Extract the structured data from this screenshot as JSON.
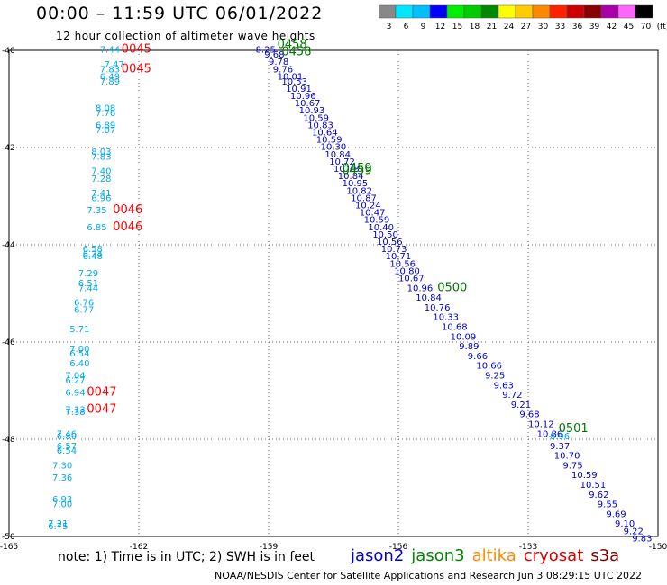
{
  "header": {
    "title": "00:00 – 11:59 UTC 06/01/2022",
    "subtitle": "12 hour collection of altimeter wave heights"
  },
  "footer": {
    "note": "note: 1) Time is in UTC; 2) SWH is in feet",
    "credit": "NOAA/NESDIS Center for Satellite Applications and Research   Jun  3 08:29:15 UTC 2022"
  },
  "satellites": [
    {
      "name": "jason2",
      "color": "#0000cc"
    },
    {
      "name": "jason3",
      "color": "#008800"
    },
    {
      "name": "altika",
      "color": "#ff8c00"
    },
    {
      "name": "cryosat",
      "color": "#dd0000"
    },
    {
      "name": "s3a",
      "color": "#880000"
    }
  ],
  "colorbar": {
    "labels": [
      "3",
      "6",
      "9",
      "12",
      "15",
      "18",
      "21",
      "24",
      "27",
      "30",
      "33",
      "36",
      "39",
      "42",
      "45",
      "70",
      "(ft)"
    ],
    "colors": [
      "#888888",
      "#00e6ff",
      "#00bfff",
      "#0000ff",
      "#00ee00",
      "#00cc00",
      "#008800",
      "#ffff00",
      "#ffcc00",
      "#ff8800",
      "#ff2200",
      "#cc0000",
      "#880000",
      "#aa00aa",
      "#ff66ff",
      "#000000"
    ]
  },
  "chart_data": {
    "type": "scatter",
    "title": "00:00 – 11:59 UTC 06/01/2022",
    "xlim": [
      -165,
      -150
    ],
    "ylim": [
      -50,
      -40
    ],
    "xticks": [
      "-165",
      "-162",
      "-159",
      "-156",
      "-153",
      "-150"
    ],
    "yticks": [
      "-40",
      "-42",
      "-44",
      "-46",
      "-48",
      "-50"
    ],
    "tracks": [
      {
        "satellite": "jason2",
        "color": "#0000cc",
        "points": [
          [
            -159.3,
            -40.05,
            "8.25"
          ],
          [
            -159.1,
            -40.15,
            "9.68"
          ],
          [
            -159.0,
            -40.3,
            "9.78"
          ],
          [
            -158.9,
            -40.45,
            "9.76"
          ],
          [
            -158.8,
            -40.6,
            "10.01"
          ],
          [
            -158.7,
            -40.7,
            "10.53"
          ],
          [
            -158.6,
            -40.85,
            "10.91"
          ],
          [
            -158.5,
            -41.0,
            "10.96"
          ],
          [
            -158.4,
            -41.15,
            "10.67"
          ],
          [
            -158.3,
            -41.3,
            "10.93"
          ],
          [
            -158.2,
            -41.45,
            "10.59"
          ],
          [
            -158.1,
            -41.6,
            "10.83"
          ],
          [
            -158.0,
            -41.75,
            "10.64"
          ],
          [
            -157.9,
            -41.9,
            "10.59"
          ],
          [
            -157.8,
            -42.05,
            "10.30"
          ],
          [
            -157.7,
            -42.2,
            "10.84"
          ],
          [
            -157.6,
            -42.35,
            "10.72"
          ],
          [
            -157.5,
            -42.5,
            "10.78"
          ],
          [
            -157.4,
            -42.65,
            "10.84"
          ],
          [
            -157.3,
            -42.8,
            "10.95"
          ],
          [
            -157.2,
            -42.95,
            "10.82"
          ],
          [
            -157.1,
            -43.1,
            "10.87"
          ],
          [
            -157.0,
            -43.25,
            "10.24"
          ],
          [
            -156.9,
            -43.4,
            "10.47"
          ],
          [
            -156.8,
            -43.55,
            "10.59"
          ],
          [
            -156.7,
            -43.7,
            "10.40"
          ],
          [
            -156.6,
            -43.85,
            "10.50"
          ],
          [
            -156.5,
            -44.0,
            "10.56"
          ],
          [
            -156.4,
            -44.15,
            "10.73"
          ],
          [
            -156.3,
            -44.3,
            "10.71"
          ],
          [
            -156.2,
            -44.45,
            "10.56"
          ],
          [
            -156.1,
            -44.6,
            "10.80"
          ],
          [
            -156.0,
            -44.75,
            "10.67"
          ],
          [
            -155.8,
            -44.95,
            "10.96"
          ],
          [
            -155.6,
            -45.15,
            "10.84"
          ],
          [
            -155.4,
            -45.35,
            "10.76"
          ],
          [
            -155.2,
            -45.55,
            "10.33"
          ],
          [
            -155.0,
            -45.75,
            "10.68"
          ],
          [
            -154.8,
            -45.95,
            "10.09"
          ],
          [
            -154.6,
            -46.15,
            "9.89"
          ],
          [
            -154.4,
            -46.35,
            "9.66"
          ],
          [
            -154.2,
            -46.55,
            "10.66"
          ],
          [
            -154.0,
            -46.75,
            "9.25"
          ],
          [
            -153.8,
            -46.95,
            "9.63"
          ],
          [
            -153.6,
            -47.15,
            "9.72"
          ],
          [
            -153.4,
            -47.35,
            "9.21"
          ],
          [
            -153.2,
            -47.55,
            "9.68"
          ],
          [
            -153.0,
            -47.75,
            "10.12"
          ],
          [
            -152.8,
            -47.95,
            "10.86"
          ],
          [
            -152.5,
            -48.2,
            "9.37"
          ],
          [
            -152.4,
            -48.4,
            "10.70"
          ],
          [
            -152.2,
            -48.6,
            "9.75"
          ],
          [
            -152.0,
            -48.8,
            "10.59"
          ],
          [
            -151.8,
            -49.0,
            "10.51"
          ],
          [
            -151.6,
            -49.2,
            "9.62"
          ],
          [
            -151.4,
            -49.4,
            "9.55"
          ],
          [
            -151.2,
            -49.6,
            "9.69"
          ],
          [
            -151.0,
            -49.8,
            "9.10"
          ],
          [
            -150.8,
            -49.95,
            "9.22"
          ],
          [
            -150.6,
            -50.1,
            "9.83"
          ]
        ]
      },
      {
        "satellite": "jason2-light",
        "color": "#00aaee",
        "points": [
          [
            -162.9,
            -40.05,
            "7.44"
          ],
          [
            -162.8,
            -40.35,
            "7.47"
          ],
          [
            -162.9,
            -40.45,
            "7.83"
          ],
          [
            -162.9,
            -40.6,
            "6.49"
          ],
          [
            -162.9,
            -40.7,
            "7.89"
          ],
          [
            -163.0,
            -41.25,
            "8.08"
          ],
          [
            -163.0,
            -41.35,
            "7.76"
          ],
          [
            -163.0,
            -41.6,
            "6.89"
          ],
          [
            -163.0,
            -41.7,
            "7.07"
          ],
          [
            -163.1,
            -42.15,
            "8.03"
          ],
          [
            -163.1,
            -42.25,
            "7.83"
          ],
          [
            -163.1,
            -42.55,
            "7.40"
          ],
          [
            -163.1,
            -42.7,
            "7.28"
          ],
          [
            -163.1,
            -43.0,
            "7.41"
          ],
          [
            -163.1,
            -43.1,
            "6.96"
          ],
          [
            -163.2,
            -43.35,
            "7.35"
          ],
          [
            -163.2,
            -43.7,
            "6.85"
          ],
          [
            -163.3,
            -44.15,
            "6.58"
          ],
          [
            -163.3,
            -44.25,
            "6.24"
          ],
          [
            -163.3,
            -44.3,
            "6.48"
          ],
          [
            -163.4,
            -44.65,
            "7.29"
          ],
          [
            -163.4,
            -44.85,
            "6.51"
          ],
          [
            -163.4,
            -44.95,
            "7.44"
          ],
          [
            -163.5,
            -45.25,
            "6.76"
          ],
          [
            -163.5,
            -45.4,
            "6.77"
          ],
          [
            -163.6,
            -45.8,
            "5.71"
          ],
          [
            -163.6,
            -46.2,
            "7.00"
          ],
          [
            -163.6,
            -46.3,
            "6.54"
          ],
          [
            -163.6,
            -46.5,
            "6.40"
          ],
          [
            -163.7,
            -46.75,
            "7.04"
          ],
          [
            -163.7,
            -46.85,
            "6.27"
          ],
          [
            -163.7,
            -47.1,
            "6.94"
          ],
          [
            -163.7,
            -47.45,
            "7.13"
          ],
          [
            -163.7,
            -47.5,
            "7.38"
          ],
          [
            -163.9,
            -47.95,
            "7.46"
          ],
          [
            -163.9,
            -48.0,
            "6.80"
          ],
          [
            -163.9,
            -48.2,
            "6.57"
          ],
          [
            -163.9,
            -48.3,
            "6.54"
          ],
          [
            -164.0,
            -48.6,
            "7.30"
          ],
          [
            -164.0,
            -48.85,
            "7.36"
          ],
          [
            -164.0,
            -49.3,
            "6.93"
          ],
          [
            -164.0,
            -49.4,
            "7.00"
          ],
          [
            -164.1,
            -49.8,
            "7.21"
          ],
          [
            -164.1,
            -49.85,
            "6.75"
          ]
        ]
      },
      {
        "satellite": "cryosat-light",
        "color": "#00aaee",
        "points": [
          [
            -152.5,
            -48.0,
            "8.96"
          ]
        ]
      }
    ],
    "time_labels": [
      {
        "satellite": "cryosat",
        "color": "#ff0000",
        "x": -162.4,
        "y": -40.05,
        "text": "0045"
      },
      {
        "satellite": "cryosat",
        "color": "#ff0000",
        "x": -162.4,
        "y": -40.45,
        "text": "0045"
      },
      {
        "satellite": "cryosat",
        "color": "#ff0000",
        "x": -162.6,
        "y": -43.35,
        "text": "0046"
      },
      {
        "satellite": "cryosat",
        "color": "#ff0000",
        "x": -162.6,
        "y": -43.7,
        "text": "0046"
      },
      {
        "satellite": "cryosat",
        "color": "#ff0000",
        "x": -163.2,
        "y": -47.1,
        "text": "0047"
      },
      {
        "satellite": "cryosat",
        "color": "#ff0000",
        "x": -163.2,
        "y": -47.45,
        "text": "0047"
      },
      {
        "satellite": "jason3",
        "color": "#007700",
        "x": -158.8,
        "y": -39.95,
        "text": "0458"
      },
      {
        "satellite": "jason3",
        "color": "#007700",
        "x": -158.7,
        "y": -40.1,
        "text": "0458"
      },
      {
        "satellite": "jason3",
        "color": "#007700",
        "x": -157.3,
        "y": -42.5,
        "text": "0459"
      },
      {
        "satellite": "jason3",
        "color": "#007700",
        "x": -157.3,
        "y": -42.55,
        "text": "0459"
      },
      {
        "satellite": "jason3",
        "color": "#007700",
        "x": -155.1,
        "y": -44.95,
        "text": "0500"
      },
      {
        "satellite": "jason3",
        "color": "#007700",
        "x": -152.3,
        "y": -47.85,
        "text": "0501"
      }
    ]
  }
}
